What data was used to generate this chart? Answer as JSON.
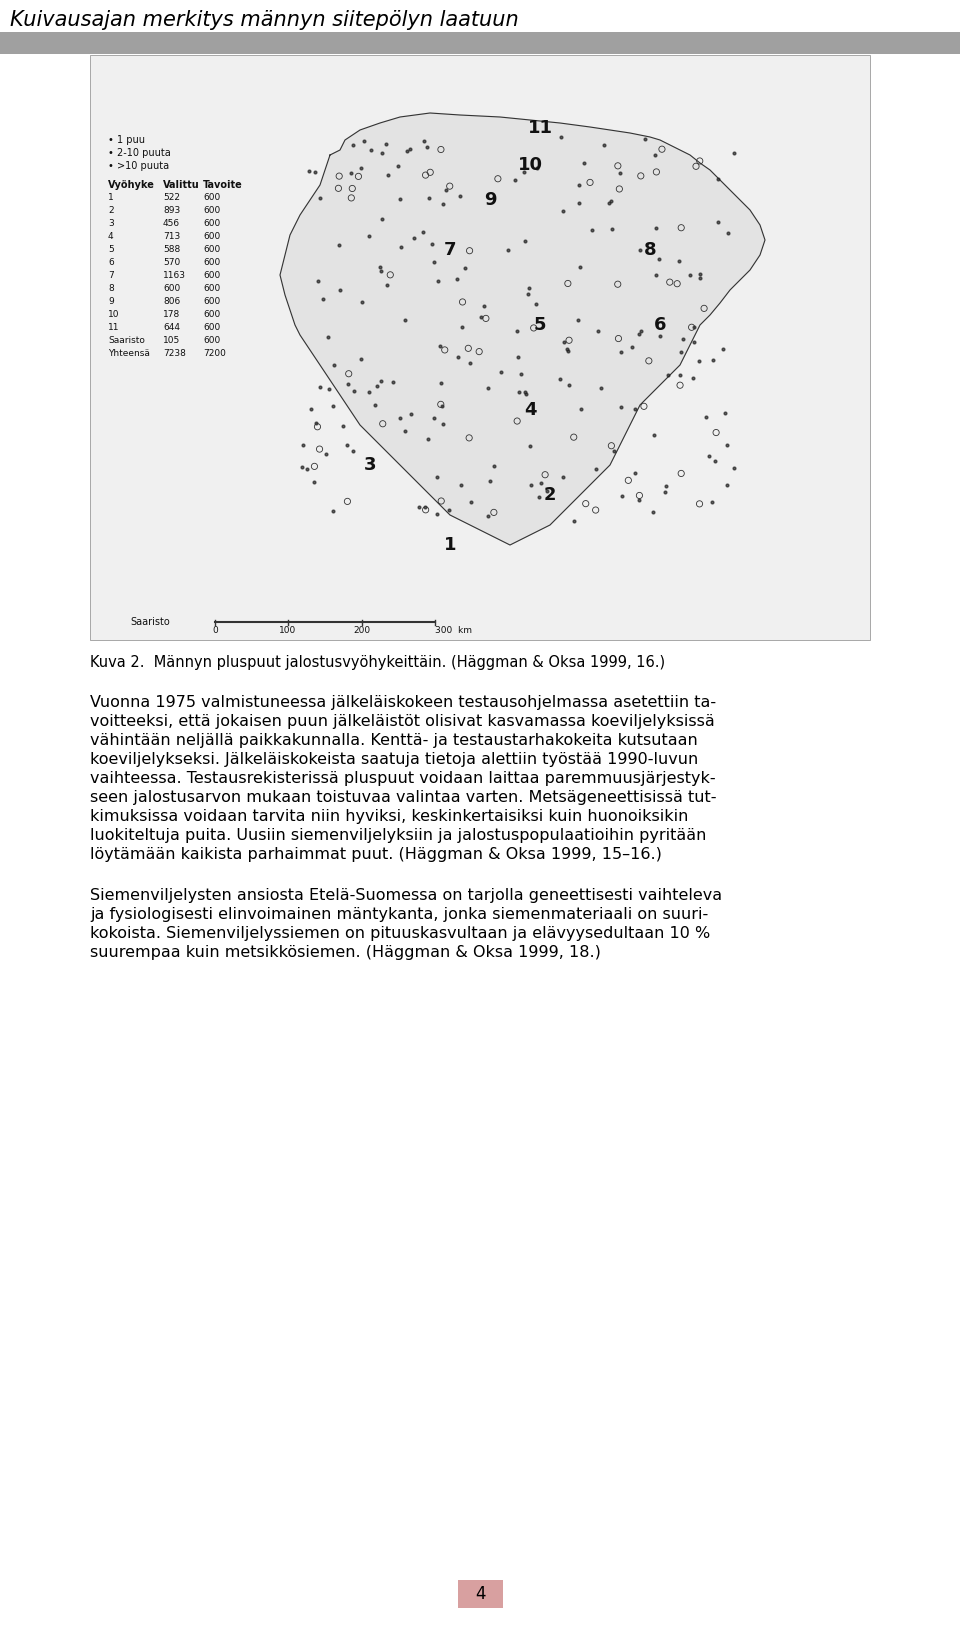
{
  "title": "Kuivausajan merkitys männyn siitepölyn laatuun",
  "title_fontsize": 15,
  "title_color": "#000000",
  "header_bar_color": "#a0a0a0",
  "caption": "Kuva 2.  Männyn pluspuut jalostusvyöhykeittäin. (Häggman & Oksa 1999, 16.)",
  "paragraph1": "Vuonna 1975 valmistuneessa jälkeläiskokeen testausohjelmassa asetettiin ta-\nvoitteeksi, että jokaisen puun jälkeläistöt olisivat kasvamassa koeviljelyksissä\nvähintään neljällä paikkakunnalla. Kenttä- ja testaustarhakokeita kutsutaan\nkoeviljelykseksi. Jälkeläiskokeista saatuja tietoja alettiin työstää 1990-luvun\nvaihteessa. Testausrekisterissä pluspuut voidaan laittaa paremmuusjärjestyk-\nseen jalostusarvon mukaan toistuvaa valintaa varten. Metsägeneettisissä tut-\nkimuksissa voidaan tarvita niin hyviksi, keskinkertaisiksi kuin huonoiksikin\nluokiteltuja puita. Uusiin siemenviljelyksiin ja jalostuspopulaatioihin pyritään\nlöytämään kaikista parhaimmat puut. (Häggman & Oksa 1999, 15–16.)",
  "paragraph2": "Siemenviljelysten ansiosta Etelä-Suomessa on tarjolla geneettisesti vaihteleva\nja fysiologisesti elinvoimainen mäntykanta, jonka siemenmateriaali on suuri-\nkokoista. Siemenviljelyssiemen on pituuskasvultaan ja elävyysedultaan 10 %\nsuurempaa kuin metsikkösiemen. (Häggman & Oksa 1999, 18.)",
  "page_number": "4",
  "body_fontsize": 11.5,
  "caption_fontsize": 10.5,
  "page_num_fontsize": 12,
  "map_image_placeholder": true,
  "background_color": "#ffffff"
}
